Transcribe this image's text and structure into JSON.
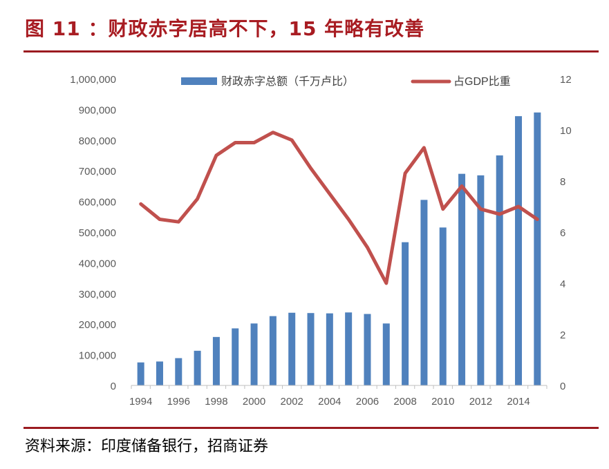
{
  "header": {
    "title": "图 11 ：财政赤字居高不下，15 年略有改善"
  },
  "footer": {
    "source": "资料来源：印度储备银行，招商证券"
  },
  "colors": {
    "title": "#a81c22",
    "rule": "#9b1b20",
    "bar": "#4f81bd",
    "line": "#c0504d"
  },
  "chart_data": {
    "type": "bar+line",
    "x": [
      1994,
      1995,
      1996,
      1997,
      1998,
      1999,
      2000,
      2001,
      2002,
      2003,
      2004,
      2005,
      2006,
      2007,
      2008,
      2009,
      2010,
      2011,
      2012,
      2013,
      2014,
      2015
    ],
    "x_tick_labels": [
      "1994",
      "1996",
      "1998",
      "2000",
      "2002",
      "2004",
      "2006",
      "2008",
      "2010",
      "2012",
      "2014"
    ],
    "series": [
      {
        "name": "财政赤字总额（千万卢比）",
        "type": "bar",
        "axis": "left",
        "values": [
          75000,
          78000,
          89000,
          113000,
          158000,
          186000,
          202000,
          226000,
          237000,
          236000,
          235000,
          238000,
          233000,
          202000,
          467000,
          605000,
          515000,
          690000,
          685000,
          750000,
          878000,
          890000
        ]
      },
      {
        "name": "占GDP比重",
        "type": "line",
        "axis": "right",
        "values": [
          7.1,
          6.5,
          6.4,
          7.3,
          9.0,
          9.5,
          9.5,
          9.9,
          9.6,
          8.5,
          7.5,
          6.5,
          5.4,
          4.0,
          8.3,
          9.3,
          6.9,
          7.8,
          6.9,
          6.7,
          7.0,
          6.5
        ]
      }
    ],
    "y_left": {
      "lim": [
        0,
        1000000
      ],
      "ticks": [
        0,
        100000,
        200000,
        300000,
        400000,
        500000,
        600000,
        700000,
        800000,
        900000,
        1000000
      ],
      "tick_labels": [
        "0",
        "100,000",
        "200,000",
        "300,000",
        "400,000",
        "500,000",
        "600,000",
        "700,000",
        "800,000",
        "900,000",
        "1,000,000"
      ]
    },
    "y_right": {
      "lim": [
        0,
        12
      ],
      "ticks": [
        0,
        2,
        4,
        6,
        8,
        10,
        12
      ],
      "tick_labels": [
        "0",
        "2",
        "4",
        "6",
        "8",
        "10",
        "12"
      ]
    },
    "legend": "top-center",
    "grid": false
  }
}
